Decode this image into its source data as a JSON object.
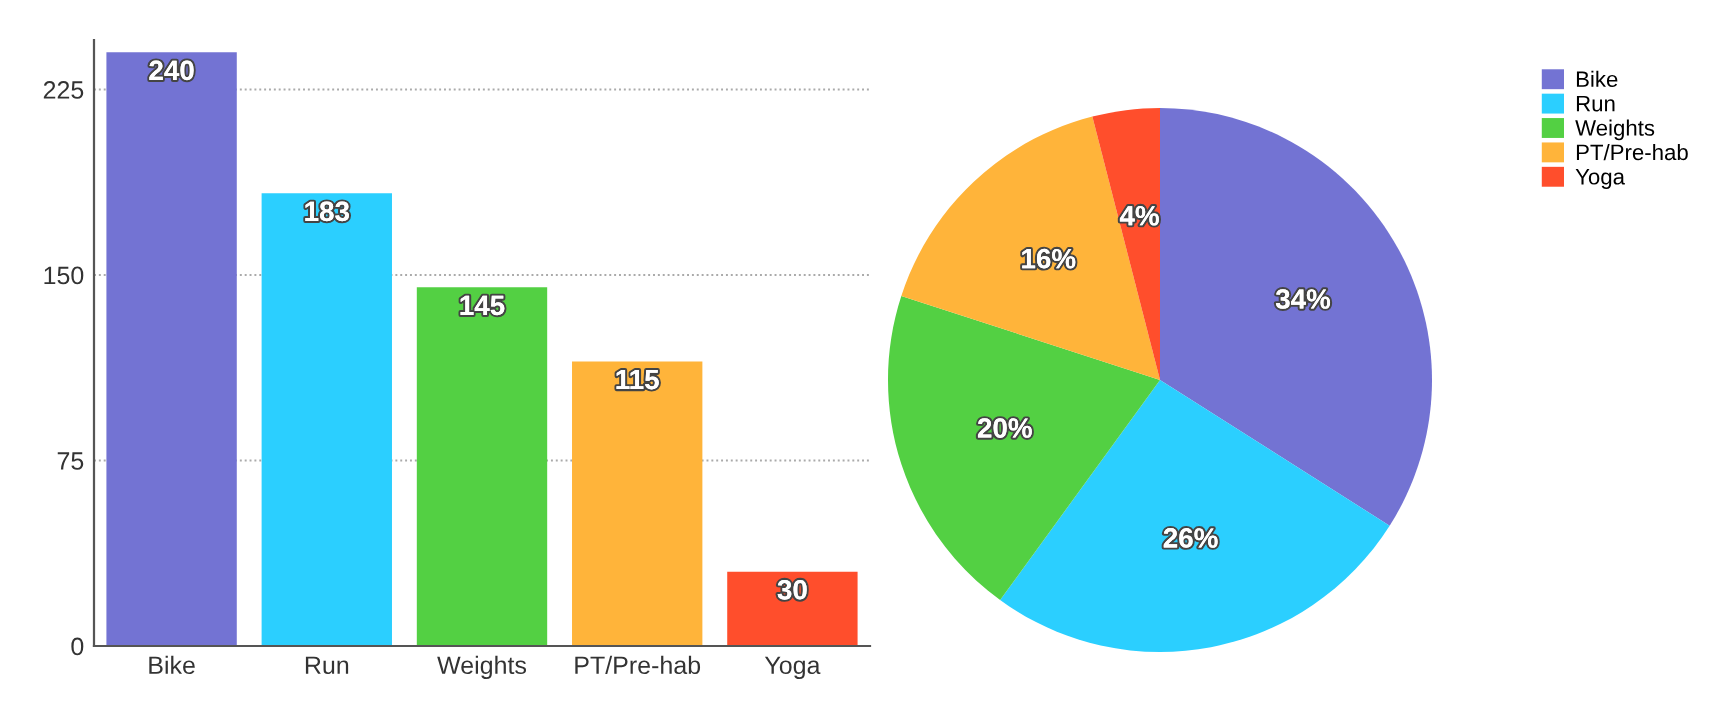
{
  "chart_data": [
    {
      "type": "bar",
      "categories": [
        "Bike",
        "Run",
        "Weights",
        "PT/Pre-hab",
        "Yoga"
      ],
      "values": [
        240,
        183,
        145,
        115,
        30
      ],
      "colors": [
        "#7373d3",
        "#2bcfff",
        "#53d043",
        "#ffb43a",
        "#ff4e2c"
      ],
      "ylim": [
        0,
        245
      ],
      "yticks": [
        0,
        75,
        150,
        225
      ],
      "grid": "y",
      "data_labels": true,
      "legend": false
    },
    {
      "type": "pie",
      "categories": [
        "Bike",
        "Run",
        "Weights",
        "PT/Pre-hab",
        "Yoga"
      ],
      "values": [
        34,
        26,
        20,
        16,
        4
      ],
      "value_labels": [
        "34%",
        "26%",
        "20%",
        "16%",
        "4%"
      ],
      "colors": [
        "#7373d3",
        "#2bcfff",
        "#53d043",
        "#ffb43a",
        "#ff4e2c"
      ],
      "legend": "top right"
    }
  ]
}
